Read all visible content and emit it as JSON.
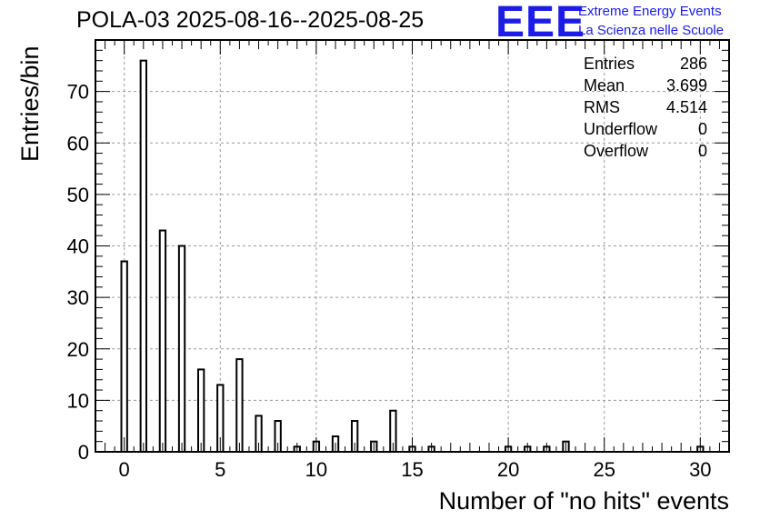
{
  "chart_data": {
    "type": "bar",
    "title": "POLA-03 2025-08-16--2025-08-25",
    "xlabel": "Number of \"no hits\" events",
    "ylabel": "Entries/bin",
    "xlim": [
      -1.5,
      31.5
    ],
    "ylim": [
      0,
      80
    ],
    "xticks": [
      "0",
      "5",
      "10",
      "15",
      "20",
      "25",
      "30"
    ],
    "yticks": [
      "0",
      "10",
      "20",
      "30",
      "40",
      "50",
      "60",
      "70"
    ],
    "grid": true,
    "x": [
      0,
      1,
      2,
      3,
      4,
      5,
      6,
      7,
      8,
      9,
      10,
      11,
      12,
      13,
      14,
      15,
      16,
      17,
      18,
      19,
      20,
      21,
      22,
      23,
      24,
      25,
      26,
      27,
      28,
      29,
      30
    ],
    "values": [
      37,
      76,
      43,
      40,
      16,
      13,
      18,
      7,
      6,
      1,
      2,
      3,
      6,
      2,
      8,
      1,
      1,
      0,
      0,
      0,
      1,
      1,
      1,
      2,
      0,
      0,
      0,
      0,
      0,
      0,
      1
    ]
  },
  "stats": [
    {
      "label": "Entries",
      "value": "286"
    },
    {
      "label": "Mean",
      "value": "3.699"
    },
    {
      "label": "RMS",
      "value": "4.514"
    },
    {
      "label": "Underflow",
      "value": "0"
    },
    {
      "label": "Overflow",
      "value": "0"
    }
  ],
  "logo": {
    "mark": "EEE",
    "line1": "Extreme Energy Events",
    "line2": "La Scienza nelle Scuole",
    "color": "#1c1ce8"
  }
}
